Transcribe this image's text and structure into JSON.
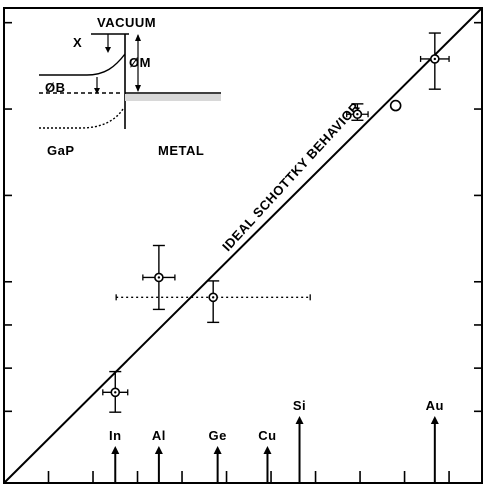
{
  "chart_data": {
    "type": "scatter",
    "title": "",
    "xlabel": "",
    "ylabel": "",
    "grid": false,
    "diagonal_label": "IDEAL SCHOTTKY BEHAVIOR",
    "metals": [
      {
        "name": "In",
        "x": 0.25
      },
      {
        "name": "Al",
        "x": 0.74
      },
      {
        "name": "Ge",
        "x": 1.4
      },
      {
        "name": "Cu",
        "x": 1.96
      },
      {
        "name": "Si",
        "x": 2.32
      },
      {
        "name": "Au",
        "x": 3.84
      }
    ],
    "points": [
      {
        "x": 0.25,
        "y": 0.72,
        "xerr": 0.14,
        "yerr_lo": 0.23,
        "yerr_hi": 0.24,
        "marker": "diamond",
        "xerr_style": "solid"
      },
      {
        "x": 0.74,
        "y": 2.05,
        "xerr": 0.18,
        "yerr_lo": 0.37,
        "yerr_hi": 0.37,
        "marker": "diamond",
        "xerr_style": "solid"
      },
      {
        "x": 1.35,
        "y": 1.82,
        "xerr": 1.09,
        "yerr_lo": 0.29,
        "yerr_hi": 0.19,
        "marker": "diamond",
        "xerr_style": "dotted"
      },
      {
        "x": 2.97,
        "y": 3.94,
        "xerr": 0.12,
        "yerr_lo": 0.07,
        "yerr_hi": 0.12,
        "marker": "diamond",
        "xerr_style": "solid"
      },
      {
        "x": 3.84,
        "y": 4.58,
        "xerr": 0.16,
        "yerr_lo": 0.35,
        "yerr_hi": 0.3,
        "marker": "diamond",
        "xerr_style": "solid"
      },
      {
        "x": 3.4,
        "y": 4.04,
        "marker": "open-circle"
      }
    ],
    "ideal_line": [
      {
        "x": -1.0,
        "y": -0.33
      },
      {
        "x": 4.37,
        "y": 5.17
      }
    ],
    "xlim": [
      -1.0,
      4.37
    ],
    "ylim": [
      -0.33,
      5.17
    ]
  },
  "inset": {
    "vacuum_label": "VACUUM",
    "chi_label": "X",
    "phi_m_label": "ØM",
    "phi_b_label": "ØB",
    "gap_label": "GaP",
    "metal_label": "METAL"
  }
}
